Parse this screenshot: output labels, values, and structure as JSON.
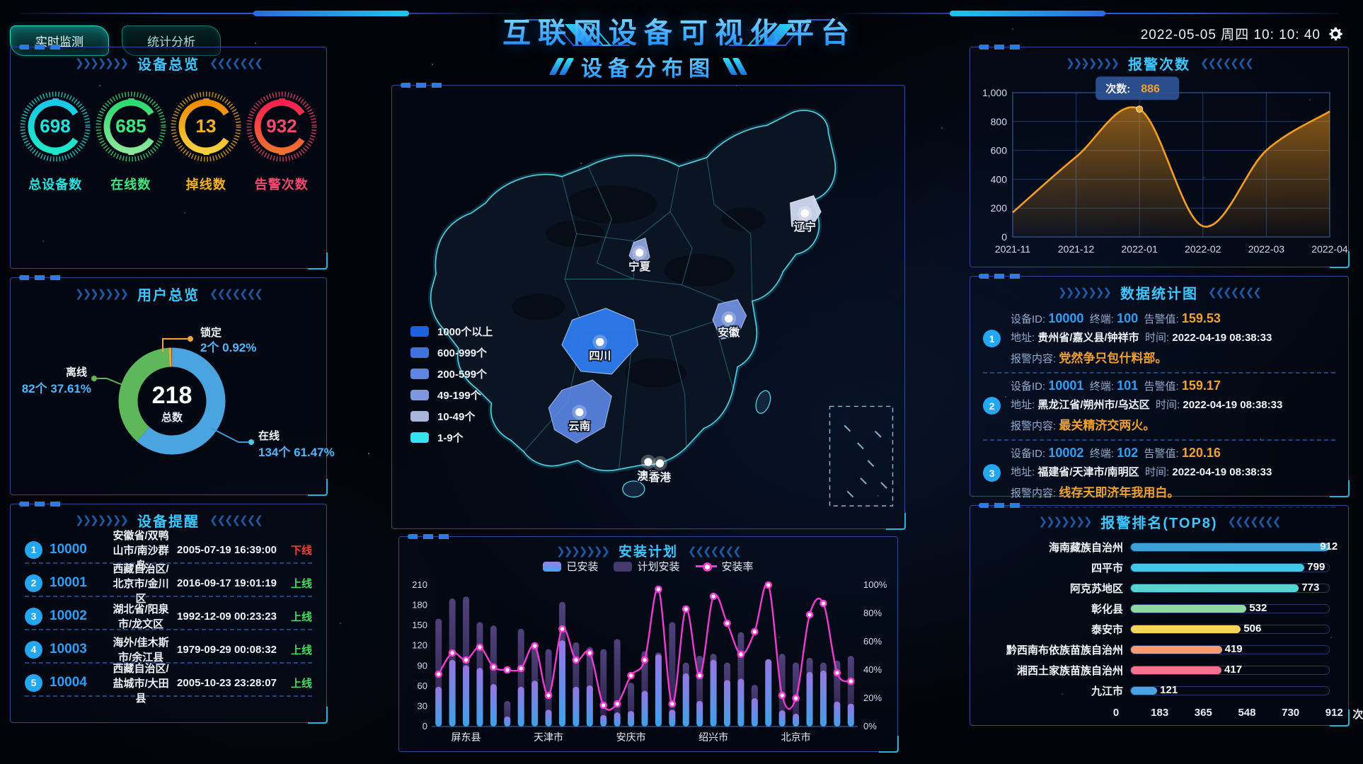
{
  "header": {
    "title": "互联网设备可视化平台",
    "tabs": [
      {
        "label": "实时监测"
      },
      {
        "label": "统计分析"
      }
    ],
    "datetime": "2022-05-05 周四 10: 10: 40",
    "gear_icon": "settings-gear"
  },
  "device_overview": {
    "title": "设备总览",
    "gauges": [
      {
        "value": "698",
        "label": "总设备数",
        "color": "#25e2dd",
        "grad": [
          "#19c8e8",
          "#1ee8c8"
        ]
      },
      {
        "value": "685",
        "label": "在线数",
        "color": "#3fe87c",
        "grad": [
          "#2ed870",
          "#8ae89a"
        ]
      },
      {
        "value": "13",
        "label": "掉线数",
        "color": "#f5b320",
        "grad": [
          "#f08a00",
          "#f5d040"
        ]
      },
      {
        "value": "932",
        "label": "告警次数",
        "color": "#f5486e",
        "grad": [
          "#f52050",
          "#f07030"
        ]
      }
    ]
  },
  "user_overview": {
    "title": "用户总览",
    "total": "218",
    "total_label": "总数",
    "slices": [
      {
        "label": "在线",
        "count": "134个",
        "percent": "61.47%",
        "value": 61.47,
        "color": "#4aa4e0"
      },
      {
        "label": "离线",
        "count": "82个",
        "percent": "37.61%",
        "value": 37.61,
        "color": "#5eb75a"
      },
      {
        "label": "锁定",
        "count": "2个",
        "percent": "0.92%",
        "value": 0.92,
        "color": "#f0a73a"
      }
    ]
  },
  "device_alerts": {
    "title": "设备提醒",
    "rows": [
      {
        "index": "1",
        "id": "10000",
        "location": "安徽省/双鸭山市/南沙群岛",
        "time": "2005-07-19 16:39:00",
        "status": "下线",
        "status_color": "#ff3b30"
      },
      {
        "index": "2",
        "id": "10001",
        "location": "西藏自治区/北京市/金川区",
        "time": "2016-09-17 19:01:19",
        "status": "上线",
        "status_color": "#3fe05a"
      },
      {
        "index": "3",
        "id": "10002",
        "location": "湖北省/阳泉市/龙文区",
        "time": "1992-12-09 00:23:23",
        "status": "上线",
        "status_color": "#3fe05a"
      },
      {
        "index": "4",
        "id": "10003",
        "location": "海外/佳木斯市/余江县",
        "time": "1979-09-29 00:08:32",
        "status": "上线",
        "status_color": "#3fe05a"
      },
      {
        "index": "5",
        "id": "10004",
        "location": "西藏自治区/盐城市/大田县",
        "time": "2005-10-23 23:28:07",
        "status": "上线",
        "status_color": "#3fe05a"
      }
    ]
  },
  "map_panel": {
    "title": "设备分布图",
    "legend": [
      {
        "label": "1000个以上",
        "color": "#1a62e0"
      },
      {
        "label": "600-999个",
        "color": "#3f73e0"
      },
      {
        "label": "200-599个",
        "color": "#5f86e0"
      },
      {
        "label": "49-199个",
        "color": "#7e97de"
      },
      {
        "label": "10-49个",
        "color": "#a9b6dc"
      },
      {
        "label": "1-9个",
        "color": "#35e3f0"
      }
    ],
    "markers": [
      "辽宁",
      "宁夏",
      "四川",
      "安徽",
      "云南",
      "澳门",
      "香港"
    ]
  },
  "data_stats": {
    "title": "数据统计图",
    "field_labels": {
      "id": "设备ID:",
      "terminal": "终端:",
      "alarm": "告警值:",
      "address": "地址:",
      "time": "时间:",
      "content": "报警内容:"
    },
    "items": [
      {
        "index": "1",
        "id": "10000",
        "terminal": "100",
        "alarm_value": "159.53",
        "address": "贵州省/嘉义县/钟祥市",
        "time": "2022-04-19 08:38:33",
        "content": "党然争只包什料部。"
      },
      {
        "index": "2",
        "id": "10001",
        "terminal": "101",
        "alarm_value": "159.17",
        "address": "黑龙江省/朔州市/乌达区",
        "time": "2022-04-19 08:38:33",
        "content": "最关精济交两火。"
      },
      {
        "index": "3",
        "id": "10002",
        "terminal": "102",
        "alarm_value": "120.16",
        "address": "福建省/天津市/南明区",
        "time": "2022-04-19 08:38:33",
        "content": "线存天即济年我用白。"
      }
    ]
  },
  "chart_data": [
    {
      "id": "alarm_trend",
      "type": "area",
      "title": "报警次数",
      "x": [
        "2021-11",
        "2021-12",
        "2022-01",
        "2022-02",
        "2022-03",
        "2022-04"
      ],
      "values": [
        170,
        555,
        886,
        75,
        600,
        870
      ],
      "ylim": [
        0,
        1000
      ],
      "y_ticks": [
        "0",
        "200",
        "400",
        "600",
        "800",
        "1,000"
      ],
      "tooltip": {
        "label": "次数:",
        "value": "886"
      },
      "color": "#f59e20",
      "grid": true,
      "legend_position": "none"
    },
    {
      "id": "install_plan",
      "type": "bar-line",
      "title": "安装计划",
      "x_labels_visible": [
        "屏东县",
        "天津市",
        "安庆市",
        "绍兴市",
        "北京市"
      ],
      "series": [
        {
          "name": "已安装",
          "type": "bar",
          "axis": "left",
          "values": [
            59,
            99,
            91,
            87,
            63,
            15,
            59,
            68,
            25,
            128,
            59,
            61,
            17,
            21,
            23,
            53,
            107,
            25,
            79,
            38,
            99,
            69,
            71,
            42,
            100,
            24,
            19,
            81,
            83,
            37,
            34
          ]
        },
        {
          "name": "计划安装",
          "type": "bar",
          "axis": "left",
          "values": [
            160,
            190,
            193,
            155,
            150,
            38,
            145,
            120,
            115,
            185,
            125,
            118,
            115,
            130,
            65,
            112,
            110,
            155,
            95,
            105,
            108,
            95,
            140,
            62,
            100,
            108,
            95,
            102,
            95,
            98,
            105
          ]
        },
        {
          "name": "安装率",
          "type": "line",
          "axis": "right",
          "values": [
            37,
            52,
            47,
            56,
            42,
            40,
            41,
            57,
            22,
            69,
            47,
            52,
            15,
            16,
            36,
            47,
            97,
            16,
            83,
            36,
            92,
            73,
            51,
            67,
            100,
            22,
            20,
            79,
            87,
            38,
            32
          ]
        }
      ],
      "left_ylim": [
        0,
        210
      ],
      "left_ticks": [
        "0",
        "30",
        "60",
        "90",
        "120",
        "150",
        "180",
        "210"
      ],
      "right_ylim": [
        0,
        100
      ],
      "right_ticks": [
        "0%",
        "20%",
        "40%",
        "60%",
        "80%",
        "100%"
      ],
      "line_color": "#f13ad2"
    },
    {
      "id": "alarm_rank",
      "type": "hbar",
      "title": "报警排名(TOP8)",
      "categories": [
        "海南藏族自治州",
        "四平市",
        "阿克苏地区",
        "彰化县",
        "泰安市",
        "黔西南布依族苗族自治州",
        "湘西土家族苗族自治州",
        "九江市"
      ],
      "values": [
        912,
        799,
        773,
        532,
        506,
        419,
        417,
        121
      ],
      "colors": [
        "#3ba2d8",
        "#3fc8e8",
        "#55d4d4",
        "#90d89e",
        "#f7d45c",
        "#f79c72",
        "#f7708e",
        "#4aa2e0"
      ],
      "x_ticks": [
        "0",
        "183",
        "365",
        "548",
        "730",
        "912"
      ],
      "unit": "次",
      "xlim": [
        0,
        912
      ]
    }
  ]
}
